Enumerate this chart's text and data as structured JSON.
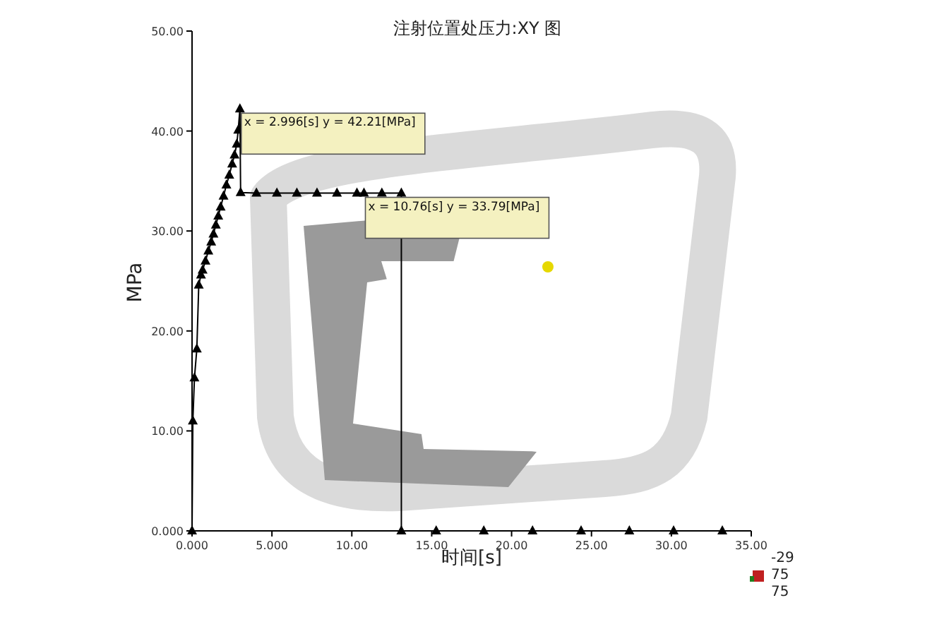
{
  "chart_data": {
    "type": "line",
    "title": "注射位置处压力:XY 图",
    "xlabel": "时间[s]",
    "ylabel": "MPa",
    "xlim": [
      0,
      35
    ],
    "ylim": [
      0,
      50
    ],
    "xticks": [
      {
        "value": 0,
        "label": "0.000"
      },
      {
        "value": 5,
        "label": "5.000"
      },
      {
        "value": 10,
        "label": "10.00"
      },
      {
        "value": 15,
        "label": "15.00"
      },
      {
        "value": 20,
        "label": "20.00"
      },
      {
        "value": 25,
        "label": "25.00"
      },
      {
        "value": 30,
        "label": "30.00"
      },
      {
        "value": 35,
        "label": "35.00"
      }
    ],
    "yticks": [
      {
        "value": 0,
        "label": "0.000"
      },
      {
        "value": 10,
        "label": "10.00"
      },
      {
        "value": 20,
        "label": "20.00"
      },
      {
        "value": 30,
        "label": "30.00"
      },
      {
        "value": 40,
        "label": "40.00"
      },
      {
        "value": 50,
        "label": "50.00"
      }
    ],
    "series": [
      {
        "color": "#000000",
        "x": [
          0,
          0.05,
          0.15,
          0.3,
          0.42,
          0.56,
          0.66,
          0.84,
          1.02,
          1.2,
          1.34,
          1.49,
          1.64,
          1.79,
          1.97,
          2.15,
          2.33,
          2.51,
          2.66,
          2.8,
          2.89,
          2.996,
          3.04,
          4.03,
          5.31,
          6.56,
          7.82,
          9.07,
          10.32,
          10.76,
          11.88,
          13.1,
          13.1,
          15.28,
          18.26,
          21.31,
          24.35,
          27.37,
          30.14,
          33.19
        ],
        "values": [
          0,
          11,
          15.3,
          18.2,
          24.6,
          25.6,
          26.1,
          27.0,
          28.0,
          28.9,
          29.7,
          30.6,
          31.5,
          32.4,
          33.5,
          34.6,
          35.6,
          36.7,
          37.6,
          38.7,
          40.1,
          42.21,
          33.85,
          33.79,
          33.79,
          33.79,
          33.79,
          33.79,
          33.79,
          33.79,
          33.79,
          33.79,
          0,
          0,
          0,
          0,
          0,
          0,
          0,
          0
        ]
      }
    ],
    "marker": "triangle",
    "line_style": "solid",
    "grid": false,
    "annotations": [
      {
        "text": "x = 2.996[s]  y = 42.21[MPa]",
        "x": 2.996,
        "y": 42.21
      },
      {
        "text": "x = 10.76[s]  y = 33.79[MPa]",
        "x": 10.76,
        "y": 33.79
      },
      "-29",
      "75",
      "75"
    ]
  }
}
